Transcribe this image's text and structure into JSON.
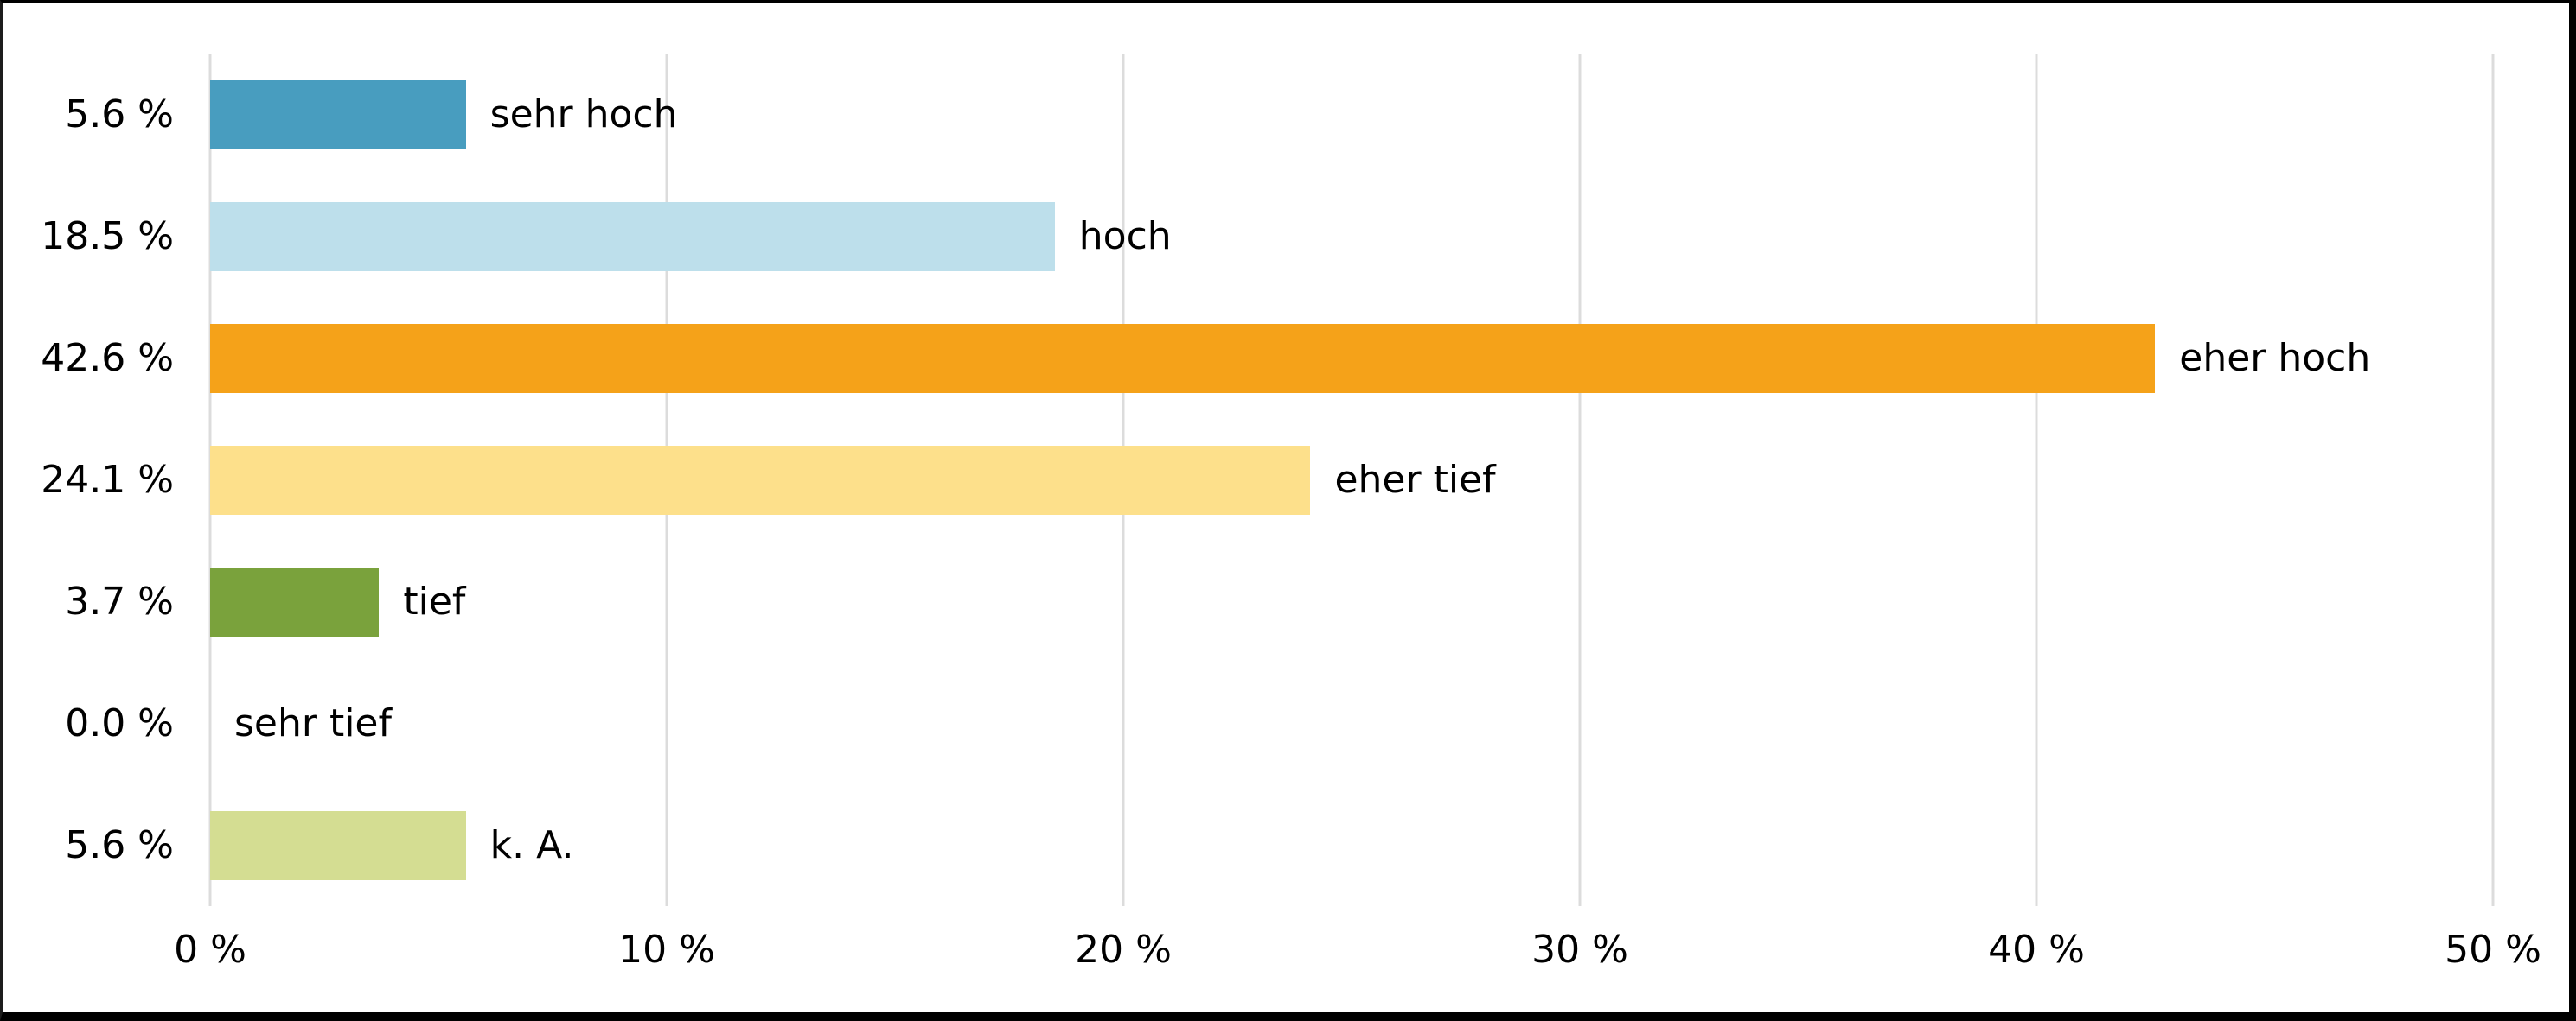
{
  "chart_data": {
    "type": "bar",
    "orientation": "horizontal",
    "title": "",
    "xlabel": "",
    "ylabel": "",
    "xlim": [
      0,
      50
    ],
    "grid": "vertical-gridlines-on",
    "legend": "none",
    "categories": [
      "sehr hoch",
      "hoch",
      "eher hoch",
      "eher tief",
      "tief",
      "sehr tief",
      "k. A."
    ],
    "values": [
      5.6,
      18.5,
      42.6,
      24.1,
      3.7,
      0.0,
      5.6
    ],
    "value_labels": [
      "5.6 %",
      "18.5 %",
      "42.6 %",
      "24.1 %",
      "3.7 %",
      "0.0 %",
      "5.6 %"
    ],
    "bar_colors": [
      "#489dbf",
      "#bddfeb",
      "#f5a219",
      "#fde08b",
      "#7aa23c",
      null,
      "#d4dd92"
    ],
    "x_ticks": [
      0,
      10,
      20,
      30,
      40,
      50
    ],
    "x_tick_labels": [
      "0 %",
      "10 %",
      "20 %",
      "30 %",
      "40 %",
      "50 %"
    ]
  },
  "colors": {
    "background": "#ffffff",
    "gridline": "#dcdcdc",
    "text": "#000000",
    "frame_border": "#000000"
  }
}
